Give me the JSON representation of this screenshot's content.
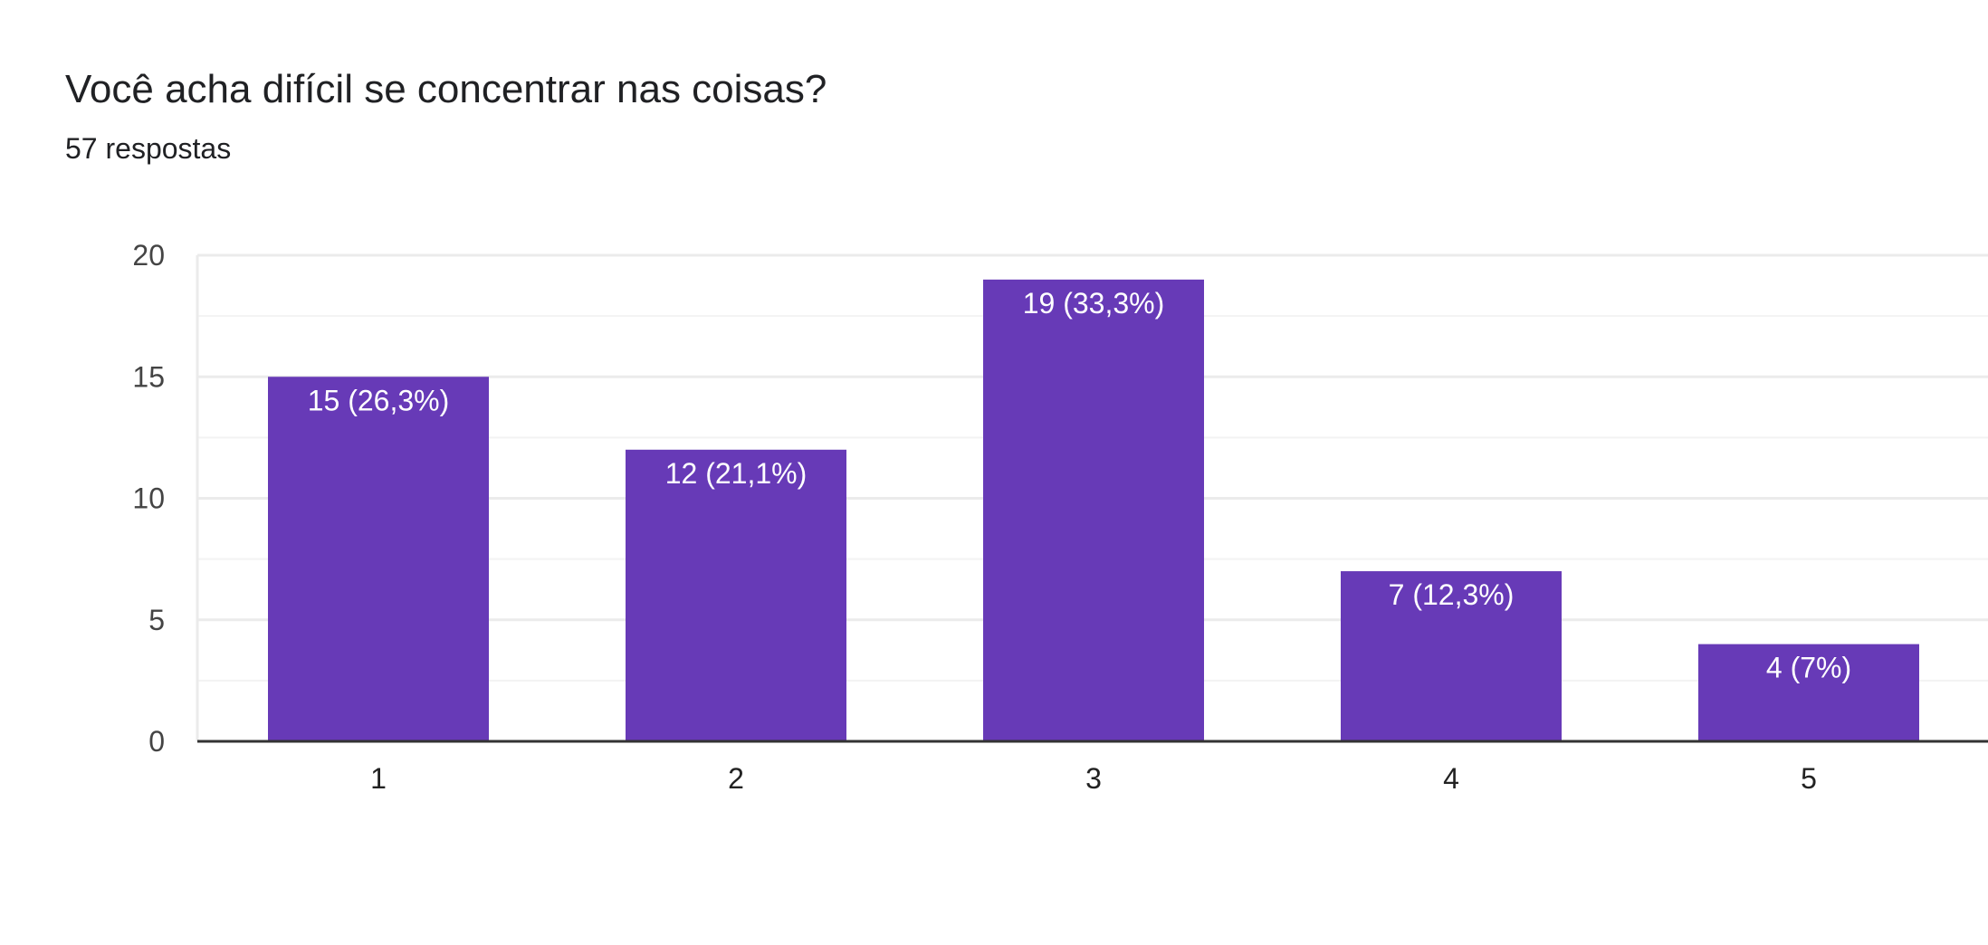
{
  "header": {
    "question": "Você acha difícil se concentrar nas coisas?",
    "responses": "57 respostas"
  },
  "colors": {
    "bar": "#673ab7",
    "gridline": "#ebebeb",
    "minor_gridline": "#f3f3f3",
    "baseline": "#333333"
  },
  "chart_data": {
    "type": "bar",
    "title": "Você acha difícil se concentrar nas coisas?",
    "subtitle": "57 respostas",
    "categories": [
      "1",
      "2",
      "3",
      "4",
      "5"
    ],
    "values": [
      15,
      12,
      19,
      7,
      4
    ],
    "data_labels": [
      "15 (26,3%)",
      "12 (21,1%)",
      "19 (33,3%)",
      "7 (12,3%)",
      "4 (7%)"
    ],
    "y_ticks": [
      "0",
      "5",
      "10",
      "15",
      "20"
    ],
    "ylim": [
      0,
      20
    ],
    "grid": true,
    "legend": "none"
  }
}
